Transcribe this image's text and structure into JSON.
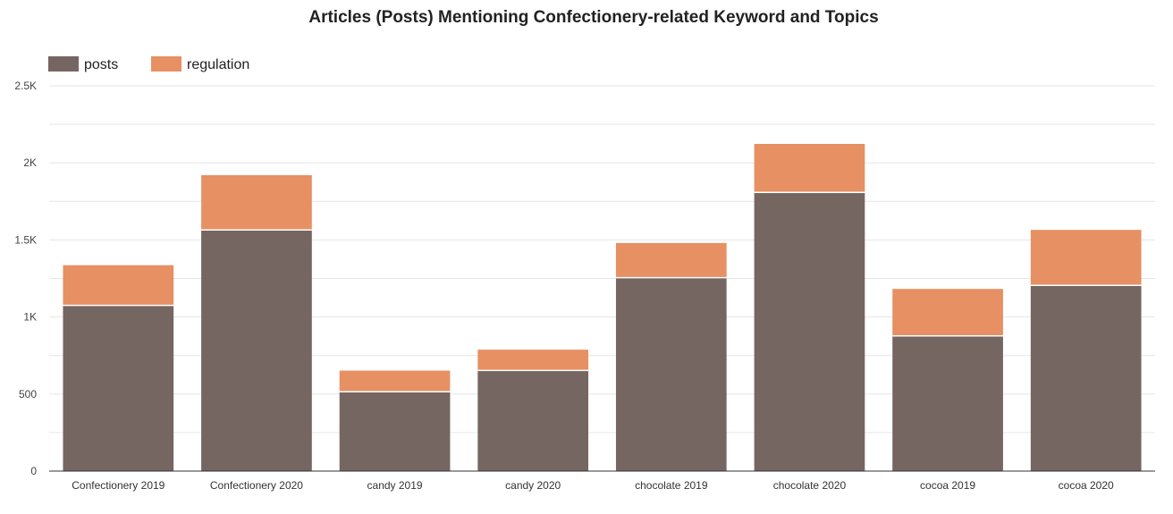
{
  "chart_data": {
    "type": "bar",
    "stacked": true,
    "title": "Articles (Posts) Mentioning Confectionery-related Keyword and Topics",
    "xlabel": "",
    "ylabel": "",
    "categories": [
      "Confectionery 2019",
      "Confectionery 2020",
      "candy 2019",
      "candy 2020",
      "chocolate 2019",
      "chocolate 2020",
      "cocoa 2019",
      "cocoa 2020"
    ],
    "series": [
      {
        "name": "posts",
        "color": "#756661",
        "values": [
          1075,
          1565,
          515,
          653,
          1255,
          1808,
          877,
          1205
        ]
      },
      {
        "name": "regulation",
        "color": "#e69063",
        "values": [
          261,
          355,
          137,
          135,
          225,
          315,
          305,
          360
        ]
      }
    ],
    "ylim": [
      0,
      2500
    ],
    "yticks": [
      0,
      500,
      1000,
      1500,
      2000,
      2500
    ],
    "ytick_labels": [
      "0",
      "500",
      "1K",
      "1.5K",
      "2K",
      "2.5K"
    ],
    "grid": true,
    "legend_position": "top-left"
  }
}
